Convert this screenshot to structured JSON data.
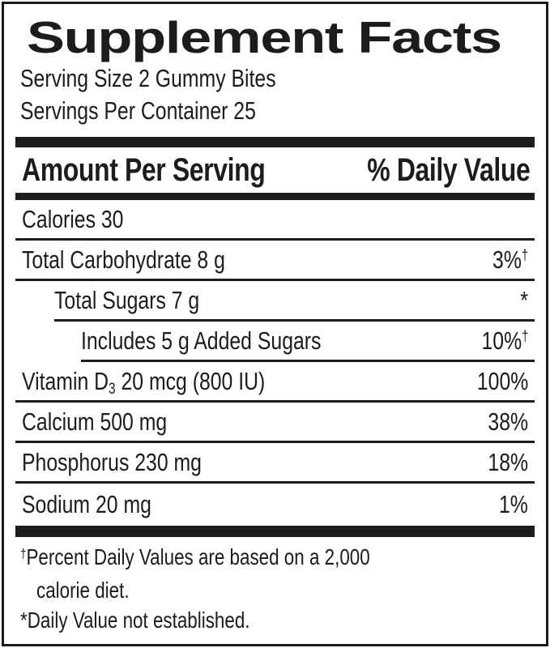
{
  "label": {
    "title": "Supplement Facts",
    "serving_size": "Serving Size 2 Gummy Bites",
    "servings_per_container": "Servings Per Container 25"
  },
  "columns": {
    "amount_header": "Amount Per Serving",
    "dv_header": "% Daily Value"
  },
  "rows": [
    {
      "name": "Calories 30",
      "value": "",
      "value_sup": "",
      "indent": 0
    },
    {
      "name": "Total Carbohydrate 8 g",
      "value": "3%",
      "value_sup": "†",
      "indent": 0
    },
    {
      "name": "Total Sugars 7 g",
      "value": "*",
      "value_sup": "",
      "indent": 1
    },
    {
      "name": "Includes 5 g Added Sugars",
      "value": "10%",
      "value_sup": "†",
      "indent": 2
    },
    {
      "name_prefix": "Vitamin D",
      "name_sub": "3",
      "name_suffix": " 20 mcg (800 IU)",
      "value": "100%",
      "value_sup": "",
      "indent": 0
    },
    {
      "name": "Calcium 500 mg",
      "value": "38%",
      "value_sup": "",
      "indent": 0
    },
    {
      "name": "Phosphorus 230 mg",
      "value": "18%",
      "value_sup": "",
      "indent": 0
    },
    {
      "name": "Sodium 20 mg",
      "value": "1%",
      "value_sup": "",
      "indent": 0
    }
  ],
  "footnotes": {
    "dagger_marker": "†",
    "dagger_line1": "Percent Daily Values are based on a 2,000",
    "dagger_line2": "calorie diet.",
    "asterisk_marker": "*",
    "asterisk_line": "Daily Value not established."
  },
  "colors": {
    "ink": "#1d1b1c",
    "background": "#ffffff"
  }
}
